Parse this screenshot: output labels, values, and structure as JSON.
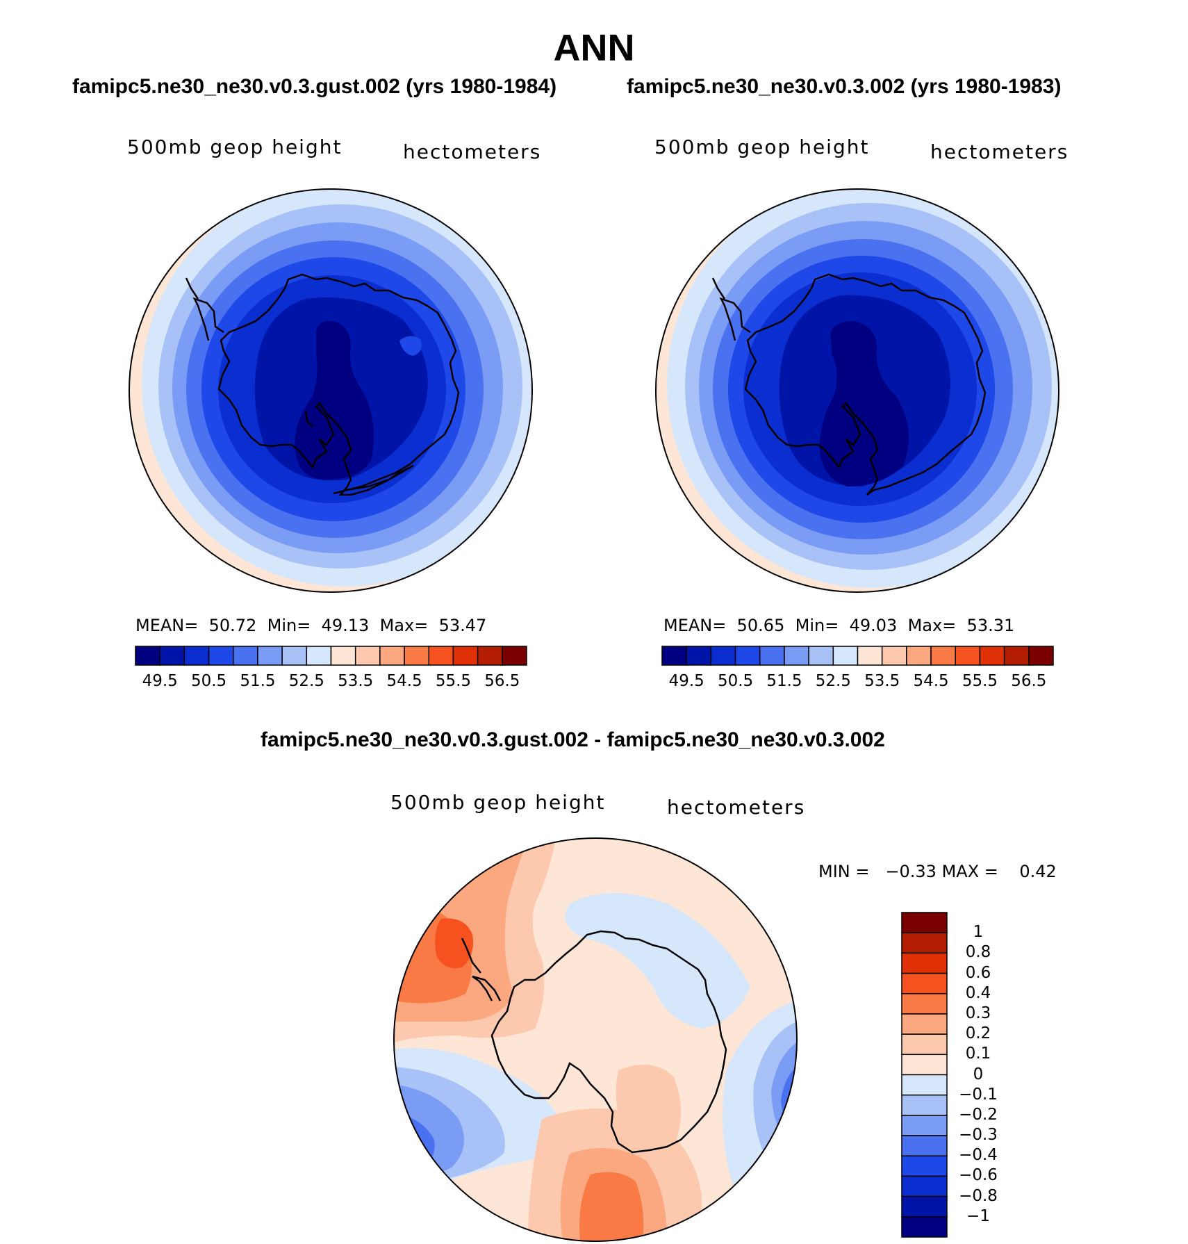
{
  "title": "ANN",
  "panels": [
    {
      "case_title": "famipc5.ne30_ne30.v0.3.gust.002 (yrs 1980-1984)",
      "variable_label": "500mb geop height",
      "units_label": "hectometers",
      "stats": {
        "mean_label": "MEAN=",
        "mean": "50.72",
        "min_label": "Min=",
        "min": "49.13",
        "max_label": "Max=",
        "max": "53.47"
      },
      "colorbar_ticks": [
        "49.5",
        "50.5",
        "51.5",
        "52.5",
        "53.5",
        "54.5",
        "55.5",
        "56.5"
      ]
    },
    {
      "case_title": "famipc5.ne30_ne30.v0.3.002 (yrs 1980-1983)",
      "variable_label": "500mb geop height",
      "units_label": "hectometers",
      "stats": {
        "mean_label": "MEAN=",
        "mean": "50.65",
        "min_label": "Min=",
        "min": "49.03",
        "max_label": "Max=",
        "max": "53.31"
      },
      "colorbar_ticks": [
        "49.5",
        "50.5",
        "51.5",
        "52.5",
        "53.5",
        "54.5",
        "55.5",
        "56.5"
      ]
    }
  ],
  "difference": {
    "case_title": "famipc5.ne30_ne30.v0.3.gust.002 - famipc5.ne30_ne30.v0.3.002",
    "variable_label": "500mb geop height",
    "units_label": "hectometers",
    "stats": {
      "min_label": "MIN =",
      "min": "−0.33",
      "max_label": "MAX =",
      "max": "0.42"
    },
    "colorbar_ticks": [
      "1",
      "0.8",
      "0.6",
      "0.4",
      "0.3",
      "0.2",
      "0.1",
      "0",
      "−0.1",
      "−0.2",
      "−0.3",
      "−0.4",
      "−0.6",
      "−0.8",
      "−1"
    ]
  },
  "colors": {
    "scale": [
      "#000080",
      "#0015a8",
      "#0a2ed0",
      "#1f48e8",
      "#4a72f0",
      "#7a9cf5",
      "#a8c2f8",
      "#d6e6fb",
      "#fde6d6",
      "#fcc8ae",
      "#fba77f",
      "#f97a45",
      "#f55220",
      "#e03206",
      "#b31d02",
      "#7a0000"
    ]
  }
}
